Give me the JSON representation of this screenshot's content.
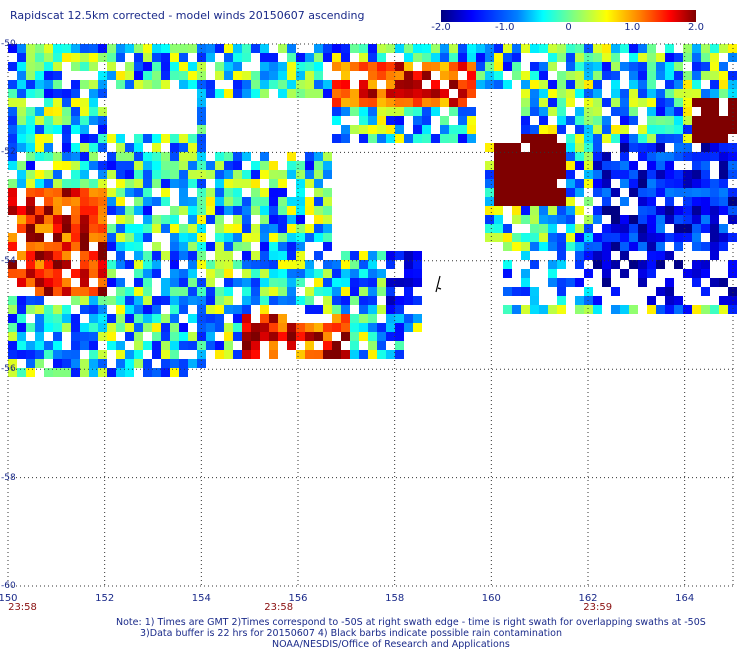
{
  "title": "Rapidscat 12.5km corrected - model winds 20150607 ascending",
  "colorbar": {
    "ticks": [
      "-2.0",
      "-1.0",
      "0",
      "1.0",
      "2.0"
    ],
    "tick_values": [
      -2.0,
      -1.0,
      0.0,
      1.0,
      2.0
    ],
    "range": [
      -2.0,
      2.0
    ],
    "colors": [
      "#00007f",
      "#0000ff",
      "#0080ff",
      "#00ffff",
      "#80ff80",
      "#ffff00",
      "#ff8000",
      "#ff0000",
      "#7f0000"
    ]
  },
  "map": {
    "lon_range": [
      150,
      165
    ],
    "lat_range": [
      -60,
      -50
    ],
    "x_ticks": [
      "150",
      "152",
      "154",
      "156",
      "158",
      "160",
      "162",
      "164"
    ],
    "x_tick_values": [
      150,
      152,
      154,
      156,
      158,
      160,
      162,
      164
    ],
    "y_ticks": [
      "-50",
      "-52",
      "-54",
      "-56",
      "-58",
      "-60"
    ],
    "y_tick_values": [
      -50,
      -52,
      -54,
      -56,
      -58,
      -60
    ],
    "times": [
      {
        "label": "23:58",
        "lon": 150.3
      },
      {
        "label": "23:58",
        "lon": 155.6
      },
      {
        "label": "23:59",
        "lon": 162.2
      }
    ],
    "rain_flag_marker": true,
    "grid_lines": "dotted"
  },
  "notes": [
    "Note: 1) Times are GMT 2)Times correspond to -50S at right swath edge - time is right swath for overlapping swaths at -50S",
    "3)Data buffer is 22 hrs for 20150607 4) Black barbs indicate possible rain contamination",
    "NOAA/NESDIS/Office of Research and Applications"
  ]
}
